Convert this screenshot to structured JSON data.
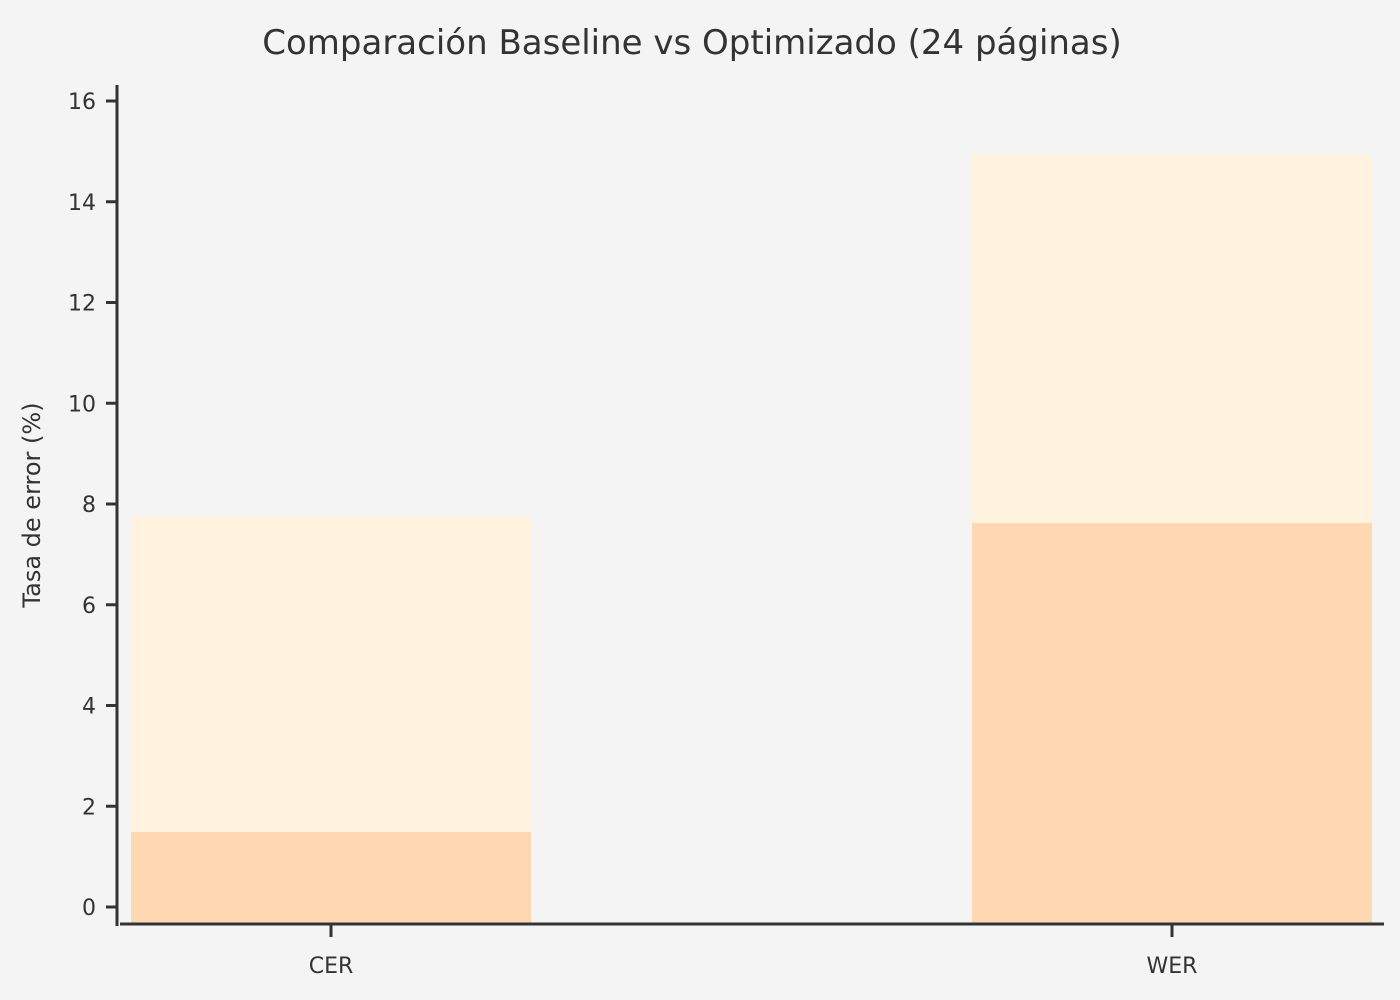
{
  "chart_data": {
    "type": "bar",
    "stacking": "overlay",
    "title": "Comparación Baseline vs Optimizado (24 páginas)",
    "xlabel": "",
    "ylabel": "Tasa de error (%)",
    "categories": [
      "CER",
      "WER"
    ],
    "series": [
      {
        "values": [
          7.76,
          14.93
        ],
        "color": "#fff3df"
      },
      {
        "values": [
          1.49,
          7.62
        ],
        "color": "#ffd8b1"
      }
    ],
    "ylim": [
      -0.34,
      16.3
    ],
    "yticks": [
      0,
      2,
      4,
      6,
      8,
      10,
      12,
      14,
      16
    ],
    "grid": false,
    "legend": "none",
    "background": "#f4f4f4"
  }
}
